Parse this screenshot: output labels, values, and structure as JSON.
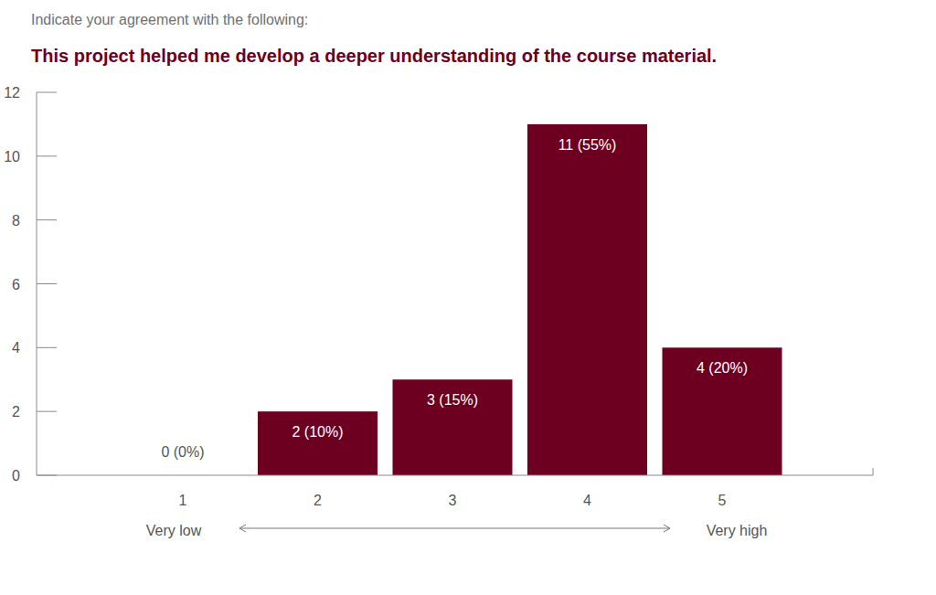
{
  "chart_data": {
    "type": "bar",
    "subtitle": "Indicate your agreement with the following:",
    "title": "This project helped me develop a deeper understanding of the course material.",
    "categories": [
      "1",
      "2",
      "3",
      "4",
      "5"
    ],
    "values": [
      0,
      2,
      3,
      11,
      4
    ],
    "value_labels": [
      "0 (0%)",
      "2 (10%)",
      "3 (15%)",
      "11 (55%)",
      "4 (20%)"
    ],
    "color": "#6d0020",
    "ylim": [
      0,
      12
    ],
    "yticks": [
      0,
      2,
      4,
      6,
      8,
      10,
      12
    ],
    "grid": false,
    "data_labels": true,
    "annotations": [
      "Very low",
      "Very high"
    ]
  }
}
